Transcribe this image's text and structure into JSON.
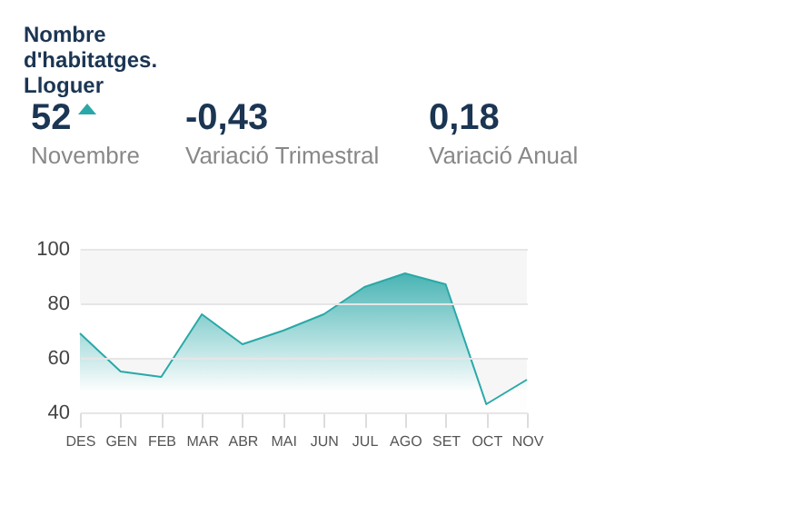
{
  "chart_data": {
    "type": "area",
    "title": "Nombre d'habitatges. Lloguer",
    "annotations": [
      "52",
      "Novembre",
      "-0,43",
      "Variació Trimestral",
      "0,18",
      "Variació Anual"
    ],
    "categories": [
      "DES",
      "GEN",
      "FEB",
      "MAR",
      "ABR",
      "MAI",
      "JUN",
      "JUL",
      "AGO",
      "SET",
      "OCT",
      "NOV"
    ],
    "series": [
      {
        "color": "#2aa8a8",
        "values": [
          69,
          55,
          53,
          76,
          65,
          70,
          76,
          86,
          91,
          87,
          43,
          52
        ]
      }
    ],
    "ylim": [
      40,
      100
    ],
    "yticks": [
      40,
      60,
      80,
      100
    ],
    "grid": "y",
    "bands": [
      {
        "axis": "y",
        "from": 80,
        "to": 100,
        "color": "#f6f6f6"
      },
      {
        "axis": "y",
        "from": 40,
        "to": 60,
        "color": "#f6f6f6"
      }
    ]
  }
}
